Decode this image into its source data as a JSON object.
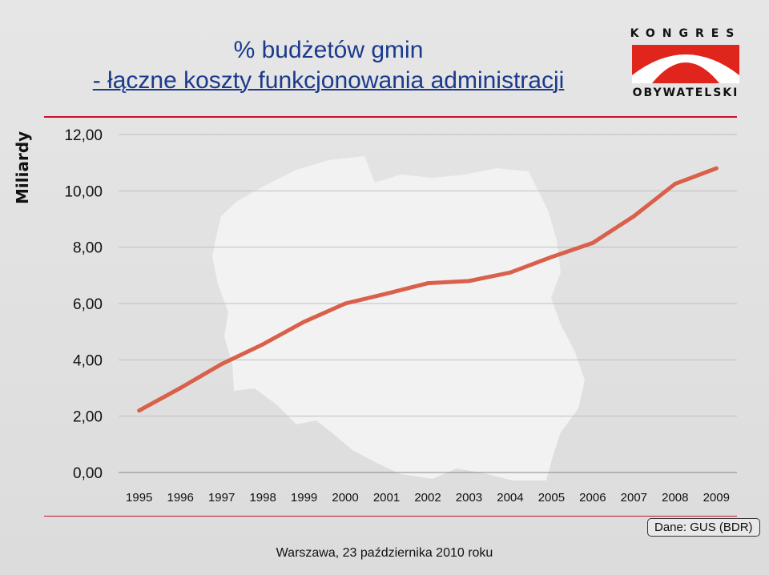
{
  "header": {
    "title_line1": "% budżetów gmin",
    "title_line2": "- łączne koszty funkcjonowania administracji"
  },
  "logo": {
    "top_word": "KONGRES",
    "bottom_word": "OBYWATELSKI",
    "colors": {
      "red": "#e0261c",
      "black": "#111111"
    }
  },
  "footer": {
    "text": "Warszawa, 23 października 2010 roku"
  },
  "source": {
    "text": "Dane: GUS (BDR)"
  },
  "colors": {
    "line": "#d9604a",
    "title": "#1a3a8c",
    "accent": "#c8102e",
    "map": "#f2f2f2"
  },
  "chart_data": {
    "type": "line",
    "title": "",
    "xlabel": "",
    "ylabel": "Miliardy",
    "categories": [
      "1995",
      "1996",
      "1997",
      "1998",
      "1999",
      "2000",
      "2001",
      "2002",
      "2003",
      "2004",
      "2005",
      "2006",
      "2007",
      "2008",
      "2009"
    ],
    "series": [
      {
        "values": [
          2.2,
          3.0,
          3.85,
          4.55,
          5.35,
          6.0,
          6.35,
          6.72,
          6.8,
          7.1,
          7.65,
          8.15,
          9.1,
          10.25,
          10.8
        ]
      }
    ],
    "yticks": [
      "0,00",
      "2,00",
      "4,00",
      "6,00",
      "8,00",
      "10,00",
      "12,00"
    ],
    "ylim": [
      0,
      12
    ],
    "grid": true,
    "legend": "none"
  }
}
